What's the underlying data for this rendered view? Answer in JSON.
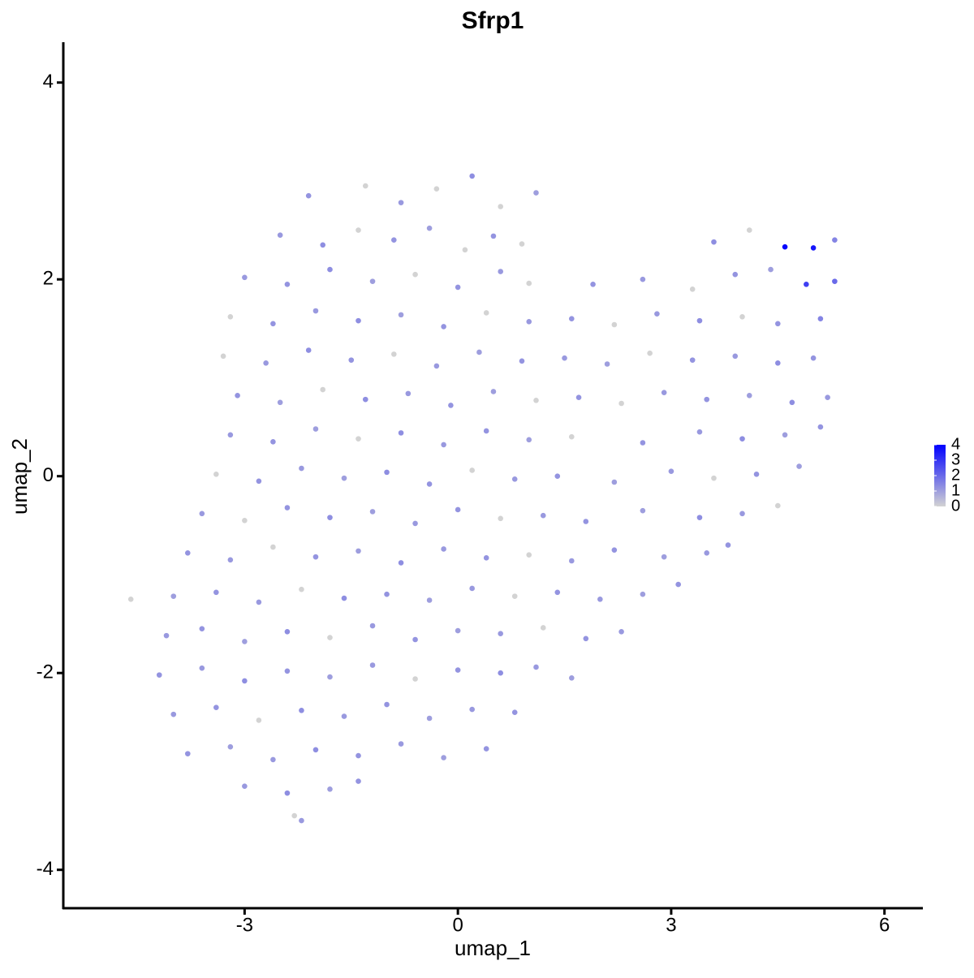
{
  "chart_data": {
    "type": "scatter",
    "title": "Sfrp1",
    "x_label": "umap_1",
    "y_label": "umap_2",
    "xlim": [
      -5.55,
      6.54
    ],
    "ylim": [
      -4.39,
      4.41
    ],
    "xticks": [
      -3,
      0,
      3,
      6
    ],
    "yticks": [
      -4,
      -2,
      0,
      2,
      4
    ],
    "color_low": "#d3d3d3",
    "color_high": "#0000ff",
    "colorlim": [
      0,
      4
    ],
    "colorticks": [
      0,
      1,
      2,
      3,
      4
    ],
    "x": [
      -2.1,
      -1.3,
      -0.8,
      -0.3,
      0.2,
      0.6,
      1.1,
      -2.5,
      -1.9,
      -1.4,
      -0.9,
      -0.4,
      0.1,
      0.5,
      0.9,
      3.6,
      4.1,
      4.6,
      5.0,
      5.3,
      -3.0,
      -2.4,
      -1.8,
      -1.2,
      -0.6,
      0.0,
      0.6,
      1.0,
      1.9,
      2.6,
      3.3,
      3.9,
      4.4,
      4.9,
      5.3,
      -3.2,
      -2.6,
      -2.0,
      -1.4,
      -0.8,
      -0.2,
      0.4,
      1.0,
      1.6,
      2.2,
      2.8,
      3.4,
      4.0,
      4.5,
      5.1,
      -3.3,
      -2.7,
      -2.1,
      -1.5,
      -0.9,
      -0.3,
      0.3,
      0.9,
      1.5,
      2.1,
      2.7,
      3.3,
      3.9,
      4.5,
      5.0,
      -3.1,
      -2.5,
      -1.9,
      -1.3,
      -0.7,
      -0.1,
      0.5,
      1.1,
      1.7,
      2.3,
      2.9,
      3.5,
      4.1,
      4.7,
      5.2,
      -3.2,
      -2.6,
      -2.0,
      -1.4,
      -0.8,
      -0.2,
      0.4,
      1.0,
      1.6,
      2.6,
      3.4,
      4.0,
      4.6,
      5.1,
      -3.4,
      -2.8,
      -2.2,
      -1.6,
      -1.0,
      -0.4,
      0.2,
      0.8,
      1.4,
      2.2,
      3.0,
      3.6,
      4.2,
      4.8,
      -3.6,
      -3.0,
      -2.4,
      -1.8,
      -1.2,
      -0.6,
      0.0,
      0.6,
      1.2,
      1.8,
      2.6,
      3.4,
      4.0,
      4.5,
      -3.8,
      -3.2,
      -2.6,
      -2.0,
      -1.4,
      -0.8,
      -0.2,
      0.4,
      1.0,
      1.6,
      2.2,
      2.9,
      3.5,
      3.8,
      -4.6,
      -4.0,
      -3.4,
      -2.8,
      -2.2,
      -1.6,
      -1.0,
      -0.4,
      0.2,
      0.8,
      1.4,
      2.0,
      2.6,
      3.1,
      -4.1,
      -3.6,
      -3.0,
      -2.4,
      -1.8,
      -1.2,
      -0.6,
      0.0,
      0.6,
      1.2,
      1.8,
      2.3,
      -4.2,
      -3.6,
      -3.0,
      -2.4,
      -1.8,
      -1.2,
      -0.6,
      0.0,
      0.6,
      1.1,
      1.6,
      -4.0,
      -3.4,
      -2.8,
      -2.2,
      -1.6,
      -1.0,
      -0.4,
      0.2,
      0.8,
      -3.8,
      -3.2,
      -2.6,
      -2.0,
      -1.4,
      -0.8,
      -0.2,
      0.4,
      -3.0,
      -2.4,
      -1.8,
      -1.4,
      -2.3,
      -2.2
    ],
    "y": [
      2.85,
      2.95,
      2.78,
      2.92,
      3.05,
      2.74,
      2.88,
      2.45,
      2.35,
      2.5,
      2.4,
      2.52,
      2.3,
      2.44,
      2.36,
      2.38,
      2.5,
      2.33,
      2.32,
      2.4,
      2.02,
      1.95,
      2.1,
      1.98,
      2.05,
      1.92,
      2.08,
      1.96,
      1.95,
      2.0,
      1.9,
      2.05,
      2.1,
      1.95,
      1.98,
      1.62,
      1.55,
      1.68,
      1.58,
      1.64,
      1.52,
      1.66,
      1.57,
      1.6,
      1.54,
      1.65,
      1.58,
      1.62,
      1.55,
      1.6,
      1.22,
      1.15,
      1.28,
      1.18,
      1.24,
      1.12,
      1.26,
      1.17,
      1.2,
      1.14,
      1.25,
      1.18,
      1.22,
      1.15,
      1.2,
      0.82,
      0.75,
      0.88,
      0.78,
      0.84,
      0.72,
      0.86,
      0.77,
      0.8,
      0.74,
      0.85,
      0.78,
      0.82,
      0.75,
      0.8,
      0.42,
      0.35,
      0.48,
      0.38,
      0.44,
      0.32,
      0.46,
      0.37,
      0.4,
      0.34,
      0.45,
      0.38,
      0.42,
      0.5,
      0.02,
      -0.05,
      0.08,
      -0.02,
      0.04,
      -0.08,
      0.06,
      -0.03,
      0.0,
      -0.06,
      0.05,
      -0.02,
      0.02,
      0.1,
      -0.38,
      -0.45,
      -0.32,
      -0.42,
      -0.36,
      -0.48,
      -0.34,
      -0.43,
      -0.4,
      -0.46,
      -0.35,
      -0.42,
      -0.38,
      -0.3,
      -0.78,
      -0.85,
      -0.72,
      -0.82,
      -0.76,
      -0.88,
      -0.74,
      -0.83,
      -0.8,
      -0.86,
      -0.75,
      -0.82,
      -0.78,
      -0.7,
      -1.25,
      -1.22,
      -1.18,
      -1.28,
      -1.15,
      -1.24,
      -1.2,
      -1.26,
      -1.14,
      -1.22,
      -1.18,
      -1.25,
      -1.2,
      -1.1,
      -1.62,
      -1.55,
      -1.68,
      -1.58,
      -1.64,
      -1.52,
      -1.66,
      -1.57,
      -1.6,
      -1.54,
      -1.65,
      -1.58,
      -2.02,
      -1.95,
      -2.08,
      -1.98,
      -2.04,
      -1.92,
      -2.06,
      -1.97,
      -2.0,
      -1.94,
      -2.05,
      -2.42,
      -2.35,
      -2.48,
      -2.38,
      -2.44,
      -2.32,
      -2.46,
      -2.37,
      -2.4,
      -2.82,
      -2.75,
      -2.88,
      -2.78,
      -2.84,
      -2.72,
      -2.86,
      -2.77,
      -3.15,
      -3.22,
      -3.18,
      -3.1,
      -3.45,
      -3.5
    ],
    "expression": [
      1.2,
      0,
      1.1,
      0,
      1.3,
      0,
      1.0,
      1.1,
      1.3,
      0,
      1.2,
      1.0,
      0,
      1.2,
      0,
      1.3,
      0,
      3.9,
      3.6,
      1.5,
      1.1,
      1.2,
      1.3,
      1.0,
      0,
      1.2,
      1.1,
      0,
      1.2,
      1.1,
      0,
      1.2,
      1.0,
      2.8,
      2.0,
      0,
      1.2,
      1.1,
      1.3,
      1.0,
      1.2,
      0,
      1.1,
      1.2,
      0,
      1.1,
      1.3,
      0,
      1.2,
      1.5,
      0,
      1.1,
      1.3,
      1.2,
      0,
      1.1,
      1.0,
      1.2,
      1.1,
      1.0,
      0,
      1.2,
      1.1,
      1.3,
      1.2,
      1.2,
      1.0,
      0,
      1.3,
      1.1,
      1.2,
      1.0,
      0,
      1.2,
      0,
      1.1,
      1.2,
      1.0,
      1.3,
      1.1,
      1.1,
      1.2,
      1.0,
      0,
      1.3,
      1.1,
      1.2,
      1.0,
      0,
      1.2,
      1.1,
      1.3,
      1.0,
      1.2,
      0,
      1.2,
      1.1,
      1.0,
      1.3,
      1.2,
      0,
      1.1,
      1.2,
      1.0,
      1.1,
      0,
      1.2,
      1.0,
      1.1,
      0,
      1.2,
      1.3,
      1.0,
      1.1,
      1.2,
      0,
      1.1,
      1.2,
      1.0,
      1.3,
      1.1,
      0,
      1.2,
      1.1,
      0,
      1.2,
      1.0,
      1.3,
      1.1,
      1.2,
      0,
      1.1,
      1.2,
      1.0,
      1.1,
      1.2,
      0,
      1.0,
      1.2,
      1.1,
      0,
      1.3,
      1.2,
      1.0,
      1.1,
      0,
      1.2,
      1.1,
      1.0,
      1.2,
      1.1,
      1.2,
      1.0,
      1.3,
      0,
      1.1,
      1.2,
      1.0,
      1.1,
      0,
      1.2,
      1.1,
      1.2,
      1.1,
      1.3,
      1.2,
      1.0,
      1.1,
      0,
      1.2,
      1.3,
      1.1,
      1.0,
      1.1,
      1.2,
      0,
      1.3,
      1.1,
      1.2,
      1.0,
      1.1,
      1.2,
      1.2,
      1.0,
      1.1,
      1.3,
      1.2,
      1.1,
      1.0,
      1.2,
      1.1,
      1.3,
      1.0,
      1.2,
      0,
      1.1
    ]
  }
}
